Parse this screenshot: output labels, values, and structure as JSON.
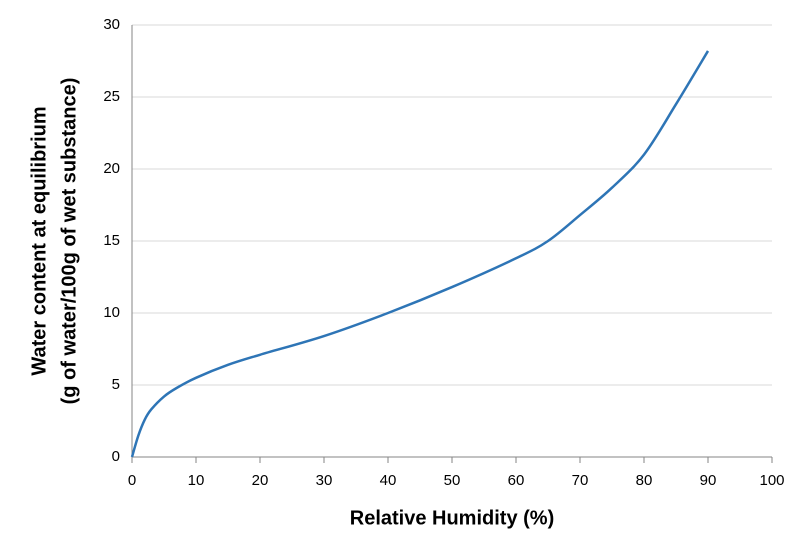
{
  "chart_data": {
    "type": "line",
    "xlabel": "Relative Humidity (%)",
    "ylabel": [
      "Water content at equilibrium",
      "(g of water/100g of wet substance)"
    ],
    "x": [
      0,
      1,
      2,
      3,
      5,
      7,
      10,
      15,
      20,
      30,
      40,
      50,
      60,
      65,
      70,
      75,
      80,
      85,
      90
    ],
    "series": [
      {
        "color": "#2e75b6",
        "values": [
          0,
          1.5,
          2.6,
          3.3,
          4.2,
          4.8,
          5.5,
          6.4,
          7.1,
          8.4,
          10,
          11.8,
          13.8,
          15,
          16.8,
          18.7,
          21,
          24.5,
          28.2
        ]
      }
    ],
    "xlim": [
      0,
      100
    ],
    "xticks": [
      0,
      10,
      20,
      30,
      40,
      50,
      60,
      70,
      80,
      90,
      100
    ],
    "ylim": [
      0,
      30
    ],
    "yticks": [
      0,
      5,
      10,
      15,
      20,
      25,
      30
    ],
    "grid": true
  }
}
